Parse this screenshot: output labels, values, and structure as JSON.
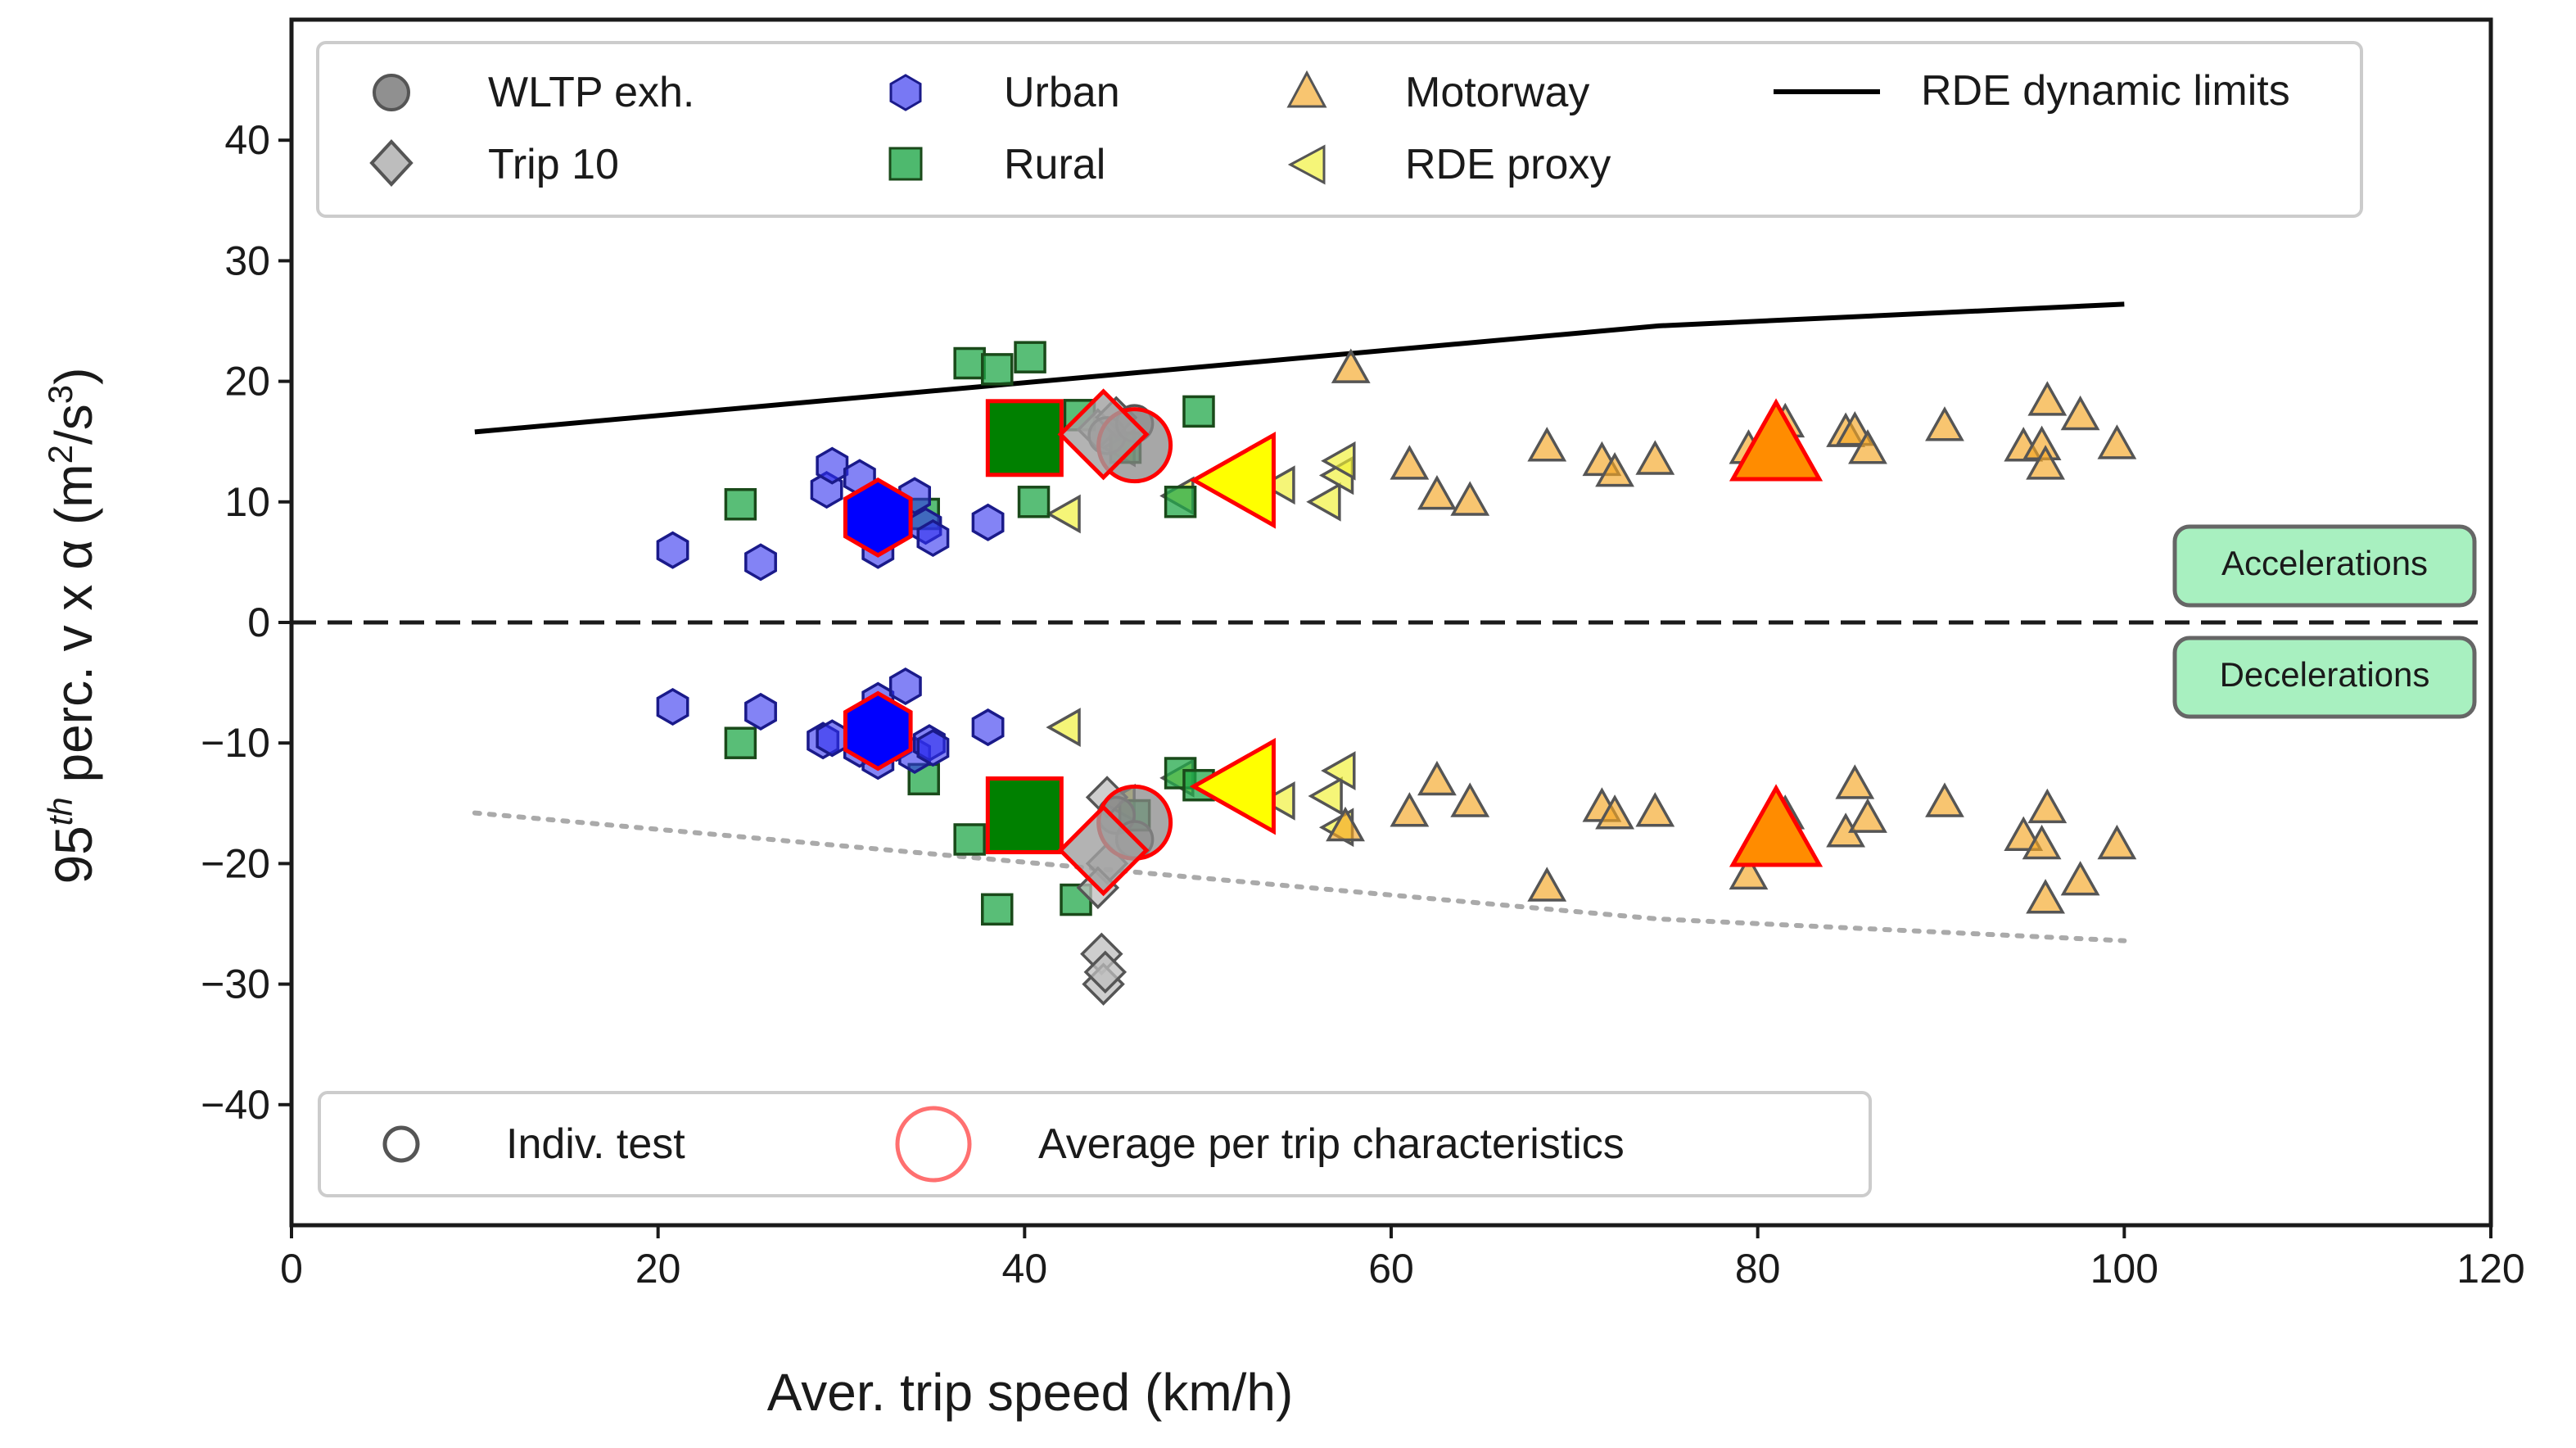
{
  "chart_data": {
    "type": "scatter",
    "xlabel": "Aver. trip speed (km/h)",
    "ylabel": {
      "prefix": "95",
      "sup": "th",
      "mid": " perc. v x α (m",
      "sup2": "2",
      "mid2": "/s",
      "sup3": "3",
      "end": ")"
    },
    "xlim": [
      0,
      120
    ],
    "ylim": [
      -50,
      50
    ],
    "xticks": [
      0,
      20,
      40,
      60,
      80,
      100,
      120
    ],
    "yticks": [
      -40,
      -30,
      -20,
      -10,
      0,
      10,
      20,
      30,
      40
    ],
    "legend_top": [
      "WLTP exh.",
      "Trip 10",
      "Urban",
      "Rural",
      "Motorway",
      "RDE proxy",
      "RDE dynamic limits"
    ],
    "legend_bottom": [
      "Indiv. test",
      "Average per trip characteristics"
    ],
    "annotations": {
      "acc": "Accelerations",
      "dec": "Decelerations"
    },
    "colors": {
      "wltp": "#909090",
      "trip10": "#bdbdbd",
      "urban": "#3030ee",
      "rural": "#22a84a",
      "motorway": "#f5a623",
      "rde_proxy": "#f0f030",
      "avg_edge": "#ff0000",
      "avg_urban": "#0000ff",
      "avg_rural": "#008000",
      "avg_motorway": "#ff8c00",
      "avg_rde": "#ffff00",
      "limit": "#000000",
      "limit_neg": "#aaaaaa",
      "annot_fill": "#a8f0c0"
    },
    "rde_limit_upper": [
      [
        10,
        15.8
      ],
      [
        74.6,
        24.6
      ],
      [
        100,
        26.4
      ]
    ],
    "rde_limit_lower": [
      [
        10,
        -15.8
      ],
      [
        74.6,
        -24.6
      ],
      [
        100,
        -26.4
      ]
    ],
    "series": [
      {
        "name": "WLTP exh.",
        "marker": "circle",
        "points": [
          [
            44.5,
            15.5
          ],
          [
            46,
            16.5
          ],
          [
            45,
            -16
          ],
          [
            46,
            -18
          ]
        ]
      },
      {
        "name": "Trip 10",
        "marker": "diamond",
        "points": [
          [
            44,
            16
          ],
          [
            45,
            17
          ],
          [
            44.5,
            -20
          ],
          [
            44.2,
            -27.5
          ],
          [
            44.3,
            -30
          ],
          [
            44.4,
            -29
          ],
          [
            44,
            -22
          ],
          [
            44.5,
            -14.5
          ]
        ]
      },
      {
        "name": "Urban",
        "marker": "hexagon",
        "points": [
          [
            20.8,
            6
          ],
          [
            25.6,
            5
          ],
          [
            29.2,
            11
          ],
          [
            29.5,
            13
          ],
          [
            31,
            12
          ],
          [
            32,
            6
          ],
          [
            33,
            8
          ],
          [
            34,
            10.5
          ],
          [
            34.6,
            8
          ],
          [
            35,
            7
          ],
          [
            38,
            8.3
          ],
          [
            20.8,
            -7
          ],
          [
            25.6,
            -7.4
          ],
          [
            29,
            -9.8
          ],
          [
            29.5,
            -9.6
          ],
          [
            31,
            -10.5
          ],
          [
            32,
            -11.5
          ],
          [
            32.5,
            -9
          ],
          [
            33,
            -10
          ],
          [
            34,
            -11
          ],
          [
            34.8,
            -10
          ],
          [
            35,
            -10.4
          ],
          [
            38,
            -8.7
          ],
          [
            32,
            -6.5
          ],
          [
            33.5,
            -5.3
          ]
        ]
      },
      {
        "name": "Rural",
        "marker": "square",
        "points": [
          [
            24.5,
            9.8
          ],
          [
            37,
            21.5
          ],
          [
            38.5,
            21
          ],
          [
            40.3,
            22
          ],
          [
            40.5,
            10
          ],
          [
            43,
            17.2
          ],
          [
            45.5,
            14.5
          ],
          [
            48.5,
            10
          ],
          [
            49.5,
            17.5
          ],
          [
            34.5,
            9
          ],
          [
            24.5,
            -10
          ],
          [
            37,
            -18
          ],
          [
            38.5,
            -23.8
          ],
          [
            42.8,
            -23
          ],
          [
            46,
            -16
          ],
          [
            48.5,
            -12.5
          ],
          [
            49.5,
            -13.5
          ],
          [
            34.5,
            -13
          ]
        ]
      },
      {
        "name": "Motorway",
        "marker": "triangle-up",
        "points": [
          [
            57.8,
            21
          ],
          [
            61,
            13
          ],
          [
            62.5,
            10.5
          ],
          [
            64.3,
            10
          ],
          [
            68.5,
            14.5
          ],
          [
            71.5,
            13.3
          ],
          [
            72.2,
            12.4
          ],
          [
            74.4,
            13.4
          ],
          [
            79.5,
            14.3
          ],
          [
            81.5,
            16.5
          ],
          [
            84.8,
            15.7
          ],
          [
            85.3,
            15.8
          ],
          [
            86,
            14.3
          ],
          [
            90.2,
            16.2
          ],
          [
            94.5,
            14.5
          ],
          [
            95.5,
            14.6
          ],
          [
            95.7,
            13
          ],
          [
            95.8,
            18.3
          ],
          [
            97.6,
            17.1
          ],
          [
            99.6,
            14.7
          ],
          [
            57.5,
            -17
          ],
          [
            61,
            -15.8
          ],
          [
            62.5,
            -13.2
          ],
          [
            64.3,
            -15
          ],
          [
            68.5,
            -22
          ],
          [
            71.5,
            -15.4
          ],
          [
            72.2,
            -16
          ],
          [
            74.4,
            -15.8
          ],
          [
            79.5,
            -21
          ],
          [
            81.5,
            -16
          ],
          [
            84.8,
            -17.5
          ],
          [
            85.3,
            -13.5
          ],
          [
            86,
            -16.3
          ],
          [
            90.2,
            -15
          ],
          [
            94.5,
            -17.8
          ],
          [
            95.5,
            -18.5
          ],
          [
            95.7,
            -23
          ],
          [
            95.8,
            -15.5
          ],
          [
            97.6,
            -21.5
          ],
          [
            99.6,
            -18.5
          ]
        ]
      },
      {
        "name": "RDE proxy",
        "marker": "triangle-left",
        "points": [
          [
            42.3,
            9
          ],
          [
            45.3,
            14.5
          ],
          [
            48.5,
            10.5
          ],
          [
            54,
            11.4
          ],
          [
            56.5,
            10
          ],
          [
            57.2,
            12.2
          ],
          [
            57.3,
            13.4
          ],
          [
            42.3,
            -8.7
          ],
          [
            45.3,
            -15
          ],
          [
            48.5,
            -12.9
          ],
          [
            54,
            -14.8
          ],
          [
            56.6,
            -14.4
          ],
          [
            57.2,
            -17
          ],
          [
            57.3,
            -12.3
          ]
        ]
      }
    ],
    "averages": [
      {
        "name": "Urban",
        "marker": "hexagon",
        "points": [
          [
            32,
            8.7
          ],
          [
            32,
            -9
          ]
        ]
      },
      {
        "name": "Rural",
        "marker": "square",
        "points": [
          [
            40,
            15.3
          ],
          [
            40,
            -16
          ]
        ]
      },
      {
        "name": "WLTP exh.",
        "marker": "circle",
        "points": [
          [
            46,
            14.7
          ],
          [
            46,
            -16.6
          ]
        ]
      },
      {
        "name": "Trip 10",
        "marker": "diamond",
        "points": [
          [
            44.3,
            15.6
          ],
          [
            44.3,
            -18.9
          ]
        ]
      },
      {
        "name": "RDE proxy",
        "marker": "triangle-left",
        "points": [
          [
            51.8,
            11.8
          ],
          [
            51.8,
            -13.6
          ]
        ]
      },
      {
        "name": "Motorway",
        "marker": "triangle-up",
        "points": [
          [
            81,
            14.5
          ],
          [
            81,
            -17.5
          ]
        ]
      }
    ]
  }
}
